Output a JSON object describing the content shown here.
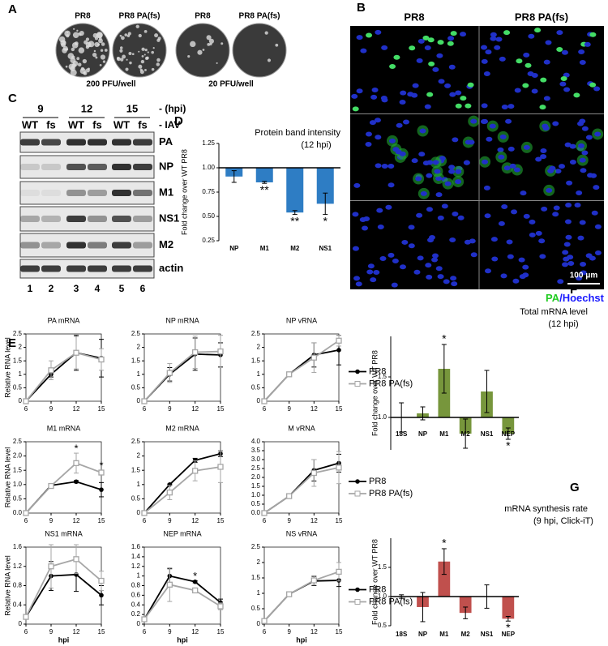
{
  "panels": [
    "A",
    "B",
    "C",
    "D",
    "E",
    "F",
    "G"
  ],
  "panel_a": {
    "columns": [
      "PR8",
      "PR8 PA(fs)",
      "PR8",
      "PR8 PA(fs)"
    ],
    "doses": [
      "200 PFU/well",
      "20 PFU/well"
    ]
  },
  "panel_b": {
    "columns": [
      "PR8",
      "PR8 PA(fs)"
    ],
    "scale_bar": "100 μm",
    "stain_labels": [
      {
        "text": "PA",
        "color": "#22cc22"
      },
      {
        "text": "/Hoechst",
        "color": "#1a1aff"
      }
    ]
  },
  "panel_c": {
    "timepoints": [
      "9",
      "12",
      "15"
    ],
    "hpi_label": "- (hpi)",
    "genotypes": [
      "WT",
      "fs",
      "WT",
      "fs",
      "WT",
      "fs"
    ],
    "iav_label": "- IAV",
    "proteins": [
      "PA",
      "NP",
      "M1",
      "NS1",
      "M2",
      "actin"
    ],
    "lanes": [
      "1",
      "2",
      "3",
      "4",
      "5",
      "6"
    ]
  },
  "chart_data": [
    {
      "type": "bar",
      "title": "Protein band intensity",
      "subtitle": "(12 hpi)",
      "ylabel": "Fold change over WT PR8",
      "categories": [
        "NP",
        "M1",
        "M2",
        "NS1"
      ],
      "values": [
        0.91,
        0.85,
        0.54,
        0.63
      ],
      "errors": [
        0.06,
        0.01,
        0.02,
        0.11
      ],
      "stars": [
        null,
        "**",
        "**",
        "*"
      ],
      "color": "#2e7dc4",
      "baseline": 1,
      "ylim": [
        0.25,
        1.25
      ],
      "yticks": [
        {
          "value": 0.25,
          "label": "0.25"
        },
        {
          "value": 0.5,
          "label": "0.50"
        },
        {
          "value": 0.75,
          "label": "0.75"
        },
        {
          "value": 1,
          "label": "1.00"
        },
        {
          "value": 1.25,
          "label": "1.25"
        }
      ]
    },
    {
      "type": "line",
      "title": "PA mRNA",
      "ylabel": "Relative RNA level",
      "x": [
        6,
        9,
        12,
        15
      ],
      "xlim": [
        6,
        15
      ],
      "xticks": [
        6,
        9,
        12,
        15
      ],
      "ylim": [
        0,
        2.5
      ],
      "yticks": [
        0,
        0.5,
        1,
        1.5,
        2,
        2.5
      ],
      "series": [
        {
          "name": "PR8",
          "color": "#000000",
          "marker": "circle",
          "values": [
            0,
            1.0,
            1.8,
            1.6
          ],
          "errors": [
            0,
            0.1,
            0.65,
            0.7
          ]
        },
        {
          "name": "PR8 PA(fs)",
          "color": "#a6a6a6",
          "marker": "square",
          "values": [
            0,
            1.15,
            1.8,
            1.55
          ],
          "errors": [
            0,
            0.35,
            0.6,
            0.4
          ]
        }
      ]
    },
    {
      "type": "line",
      "title": "NP mRNA",
      "x": [
        6,
        9,
        12,
        15
      ],
      "xlim": [
        6,
        15
      ],
      "xticks": [
        6,
        9,
        12,
        15
      ],
      "ylim": [
        0,
        2.5
      ],
      "yticks": [
        0,
        0.5,
        1,
        1.5,
        2,
        2.5
      ],
      "series": [
        {
          "name": "PR8",
          "color": "#000000",
          "marker": "circle",
          "values": [
            0,
            1.0,
            1.75,
            1.72
          ],
          "errors": [
            0,
            0.25,
            0.6,
            0.45
          ]
        },
        {
          "name": "PR8 PA(fs)",
          "color": "#a6a6a6",
          "marker": "square",
          "values": [
            0,
            1.05,
            1.82,
            1.85
          ],
          "errors": [
            0,
            0.35,
            0.6,
            0.6
          ]
        }
      ]
    },
    {
      "type": "line",
      "title": "NP vRNA",
      "legend": "right",
      "x": [
        6,
        9,
        12,
        15
      ],
      "xlim": [
        6,
        15
      ],
      "xticks": [
        6,
        9,
        12,
        15
      ],
      "ylim": [
        0,
        2.5
      ],
      "yticks": [
        0,
        0.5,
        1,
        1.5,
        2,
        2.5
      ],
      "series": [
        {
          "name": "PR8",
          "color": "#000000",
          "marker": "circle",
          "values": [
            0,
            1.0,
            1.72,
            1.9
          ],
          "errors": [
            0,
            0.03,
            0.45,
            0.55
          ]
        },
        {
          "name": "PR8 PA(fs)",
          "color": "#a6a6a6",
          "marker": "square",
          "values": [
            0,
            1.0,
            1.62,
            2.25
          ],
          "errors": [
            0,
            0.03,
            0.55,
            0.2
          ]
        }
      ]
    },
    {
      "type": "line",
      "title": "M1 mRNA",
      "ylabel": "Relative RNA level",
      "x": [
        6,
        9,
        12,
        15
      ],
      "xlim": [
        6,
        15
      ],
      "xticks": [
        6,
        9,
        12,
        15
      ],
      "ylim": [
        0,
        2.5
      ],
      "yticks": [
        {
          "value": 0,
          "label": "0.0"
        },
        0.5,
        {
          "value": 1,
          "label": "1.0"
        },
        1.5,
        {
          "value": 2,
          "label": "2.0"
        },
        2.5
      ],
      "stars": [
        {
          "x": 12,
          "text": "*"
        },
        {
          "x": 15,
          "text": "*"
        }
      ],
      "series": [
        {
          "name": "PR8",
          "color": "#000000",
          "marker": "circle",
          "values": [
            0,
            0.97,
            1.1,
            0.82
          ],
          "errors": [
            0,
            0.05,
            0.04,
            0.25
          ]
        },
        {
          "name": "PR8 PA(fs)",
          "color": "#a6a6a6",
          "marker": "square",
          "values": [
            0,
            0.95,
            1.75,
            1.42
          ],
          "errors": [
            0,
            0.06,
            0.35,
            0.08
          ]
        }
      ]
    },
    {
      "type": "line",
      "title": "M2 mRNA",
      "x": [
        6,
        9,
        12,
        15
      ],
      "xlim": [
        6,
        15
      ],
      "xticks": [
        6,
        9,
        12,
        15
      ],
      "ylim": [
        0,
        2.5
      ],
      "yticks": [
        0,
        0.5,
        1,
        1.5,
        2,
        2.5
      ],
      "series": [
        {
          "name": "PR8",
          "color": "#000000",
          "marker": "circle",
          "values": [
            0,
            1.0,
            1.85,
            2.08
          ],
          "errors": [
            0,
            0.02,
            0.07,
            0.1
          ]
        },
        {
          "name": "PR8 PA(fs)",
          "color": "#a6a6a6",
          "marker": "square",
          "values": [
            0,
            0.72,
            1.48,
            1.62
          ],
          "errors": [
            0,
            0.25,
            0.35,
            0.55
          ]
        }
      ]
    },
    {
      "type": "line",
      "title": "M vRNA",
      "legend": "right",
      "x": [
        6,
        9,
        12,
        15
      ],
      "xlim": [
        6,
        15
      ],
      "xticks": [
        6,
        9,
        12,
        15
      ],
      "ylim": [
        0,
        4
      ],
      "yticks": [
        {
          "value": 0,
          "label": "0.0"
        },
        0.5,
        {
          "value": 1,
          "label": "1.0"
        },
        1.5,
        {
          "value": 2,
          "label": "2.0"
        },
        2.5,
        {
          "value": 3,
          "label": "3.0"
        },
        3.5,
        {
          "value": 4,
          "label": "4.0"
        }
      ],
      "series": [
        {
          "name": "PR8",
          "color": "#000000",
          "marker": "circle",
          "values": [
            0,
            0.95,
            2.4,
            2.8
          ],
          "errors": [
            0,
            0.03,
            0.6,
            0.5
          ]
        },
        {
          "name": "PR8 PA(fs)",
          "color": "#a6a6a6",
          "marker": "square",
          "values": [
            0,
            0.95,
            2.25,
            2.55
          ],
          "errors": [
            0,
            0.03,
            0.75,
            0.9
          ]
        }
      ]
    },
    {
      "type": "line",
      "title": "NS1 mRNA",
      "ylabel": "Relative RNA level",
      "xlabel": "hpi",
      "x": [
        6,
        9,
        12,
        15
      ],
      "xlim": [
        6,
        15
      ],
      "xticks": [
        6,
        9,
        12,
        15
      ],
      "ylim": [
        0,
        1.6
      ],
      "yticks": [
        0,
        0.4,
        0.8,
        1.2,
        1.6
      ],
      "series": [
        {
          "name": "PR8",
          "color": "#000000",
          "marker": "circle",
          "values": [
            0.15,
            1.0,
            1.03,
            0.6
          ],
          "errors": [
            0.02,
            0.3,
            0.35,
            0.2
          ]
        },
        {
          "name": "PR8 PA(fs)",
          "color": "#a6a6a6",
          "marker": "square",
          "values": [
            0.15,
            1.2,
            1.35,
            0.9
          ],
          "errors": [
            0.02,
            0.45,
            0.3,
            0.2
          ]
        }
      ]
    },
    {
      "type": "line",
      "title": "NEP mRNA",
      "xlabel": "hpi",
      "x": [
        6,
        9,
        12,
        15
      ],
      "xlim": [
        6,
        15
      ],
      "xticks": [
        6,
        9,
        12,
        15
      ],
      "ylim": [
        0,
        1.6
      ],
      "yticks": [
        0,
        0.2,
        0.4,
        0.6,
        0.8,
        1,
        1.2,
        1.4,
        1.6
      ],
      "stars": [
        {
          "x": 12,
          "text": "*"
        }
      ],
      "series": [
        {
          "name": "PR8",
          "color": "#000000",
          "marker": "circle",
          "values": [
            0.1,
            1.0,
            0.88,
            0.45
          ],
          "errors": [
            0.02,
            0.15,
            0.02,
            0.07
          ]
        },
        {
          "name": "PR8 PA(fs)",
          "color": "#a6a6a6",
          "marker": "square",
          "values": [
            0.1,
            0.82,
            0.7,
            0.37
          ],
          "errors": [
            0.02,
            0.35,
            0.05,
            0.07
          ]
        }
      ]
    },
    {
      "type": "line",
      "title": "NS vRNA",
      "xlabel": "hpi",
      "legend": "right",
      "x": [
        6,
        9,
        12,
        15
      ],
      "xlim": [
        6,
        15
      ],
      "xticks": [
        6,
        9,
        12,
        15
      ],
      "ylim": [
        0,
        2.5
      ],
      "yticks": [
        0,
        0.5,
        1,
        1.5,
        2,
        2.5
      ],
      "series": [
        {
          "name": "PR8",
          "color": "#000000",
          "marker": "circle",
          "values": [
            0.1,
            0.97,
            1.4,
            1.42
          ],
          "errors": [
            0.02,
            0.05,
            0.15,
            0.2
          ]
        },
        {
          "name": "PR8 PA(fs)",
          "color": "#a6a6a6",
          "marker": "square",
          "values": [
            0.1,
            0.97,
            1.42,
            1.7
          ],
          "errors": [
            0.02,
            0.05,
            0.15,
            0.3
          ]
        }
      ]
    },
    {
      "type": "bar",
      "title": "Total mRNA level",
      "subtitle": "(12 hpi)",
      "ylabel": "Fold change over WT PR8",
      "categories": [
        "18S",
        "NP",
        "M1",
        "M2",
        "NS1",
        "NEP"
      ],
      "values": [
        1.0,
        1.05,
        1.6,
        0.8,
        1.32,
        0.8
      ],
      "errors": [
        0.18,
        0.08,
        0.3,
        0.18,
        0.26,
        0.07
      ],
      "stars": [
        null,
        null,
        "*",
        null,
        null,
        "*"
      ],
      "color": "#77963c",
      "baseline": 1,
      "ylim": [
        0.6,
        2.0
      ],
      "yticks": [
        {
          "value": 1,
          "label": "1.0"
        },
        1.5
      ]
    },
    {
      "type": "bar",
      "title": "mRNA synthesis rate",
      "subtitle": "(9 hpi, Click-iT)",
      "ylabel": "Fold change over WT PR8",
      "categories": [
        "18S",
        "NP",
        "M1",
        "M2",
        "NS1",
        "NEP"
      ],
      "values": [
        1.0,
        0.82,
        1.6,
        0.72,
        1.0,
        0.62
      ],
      "errors": [
        0.03,
        0.25,
        0.22,
        0.1,
        0.2,
        0.04
      ],
      "stars": [
        null,
        null,
        "*",
        null,
        null,
        "*"
      ],
      "color": "#c0504d",
      "baseline": 1,
      "ylim": [
        0.5,
        2.0
      ],
      "yticks": [
        0.5,
        {
          "value": 1,
          "label": "1.0"
        },
        1.5
      ]
    }
  ]
}
